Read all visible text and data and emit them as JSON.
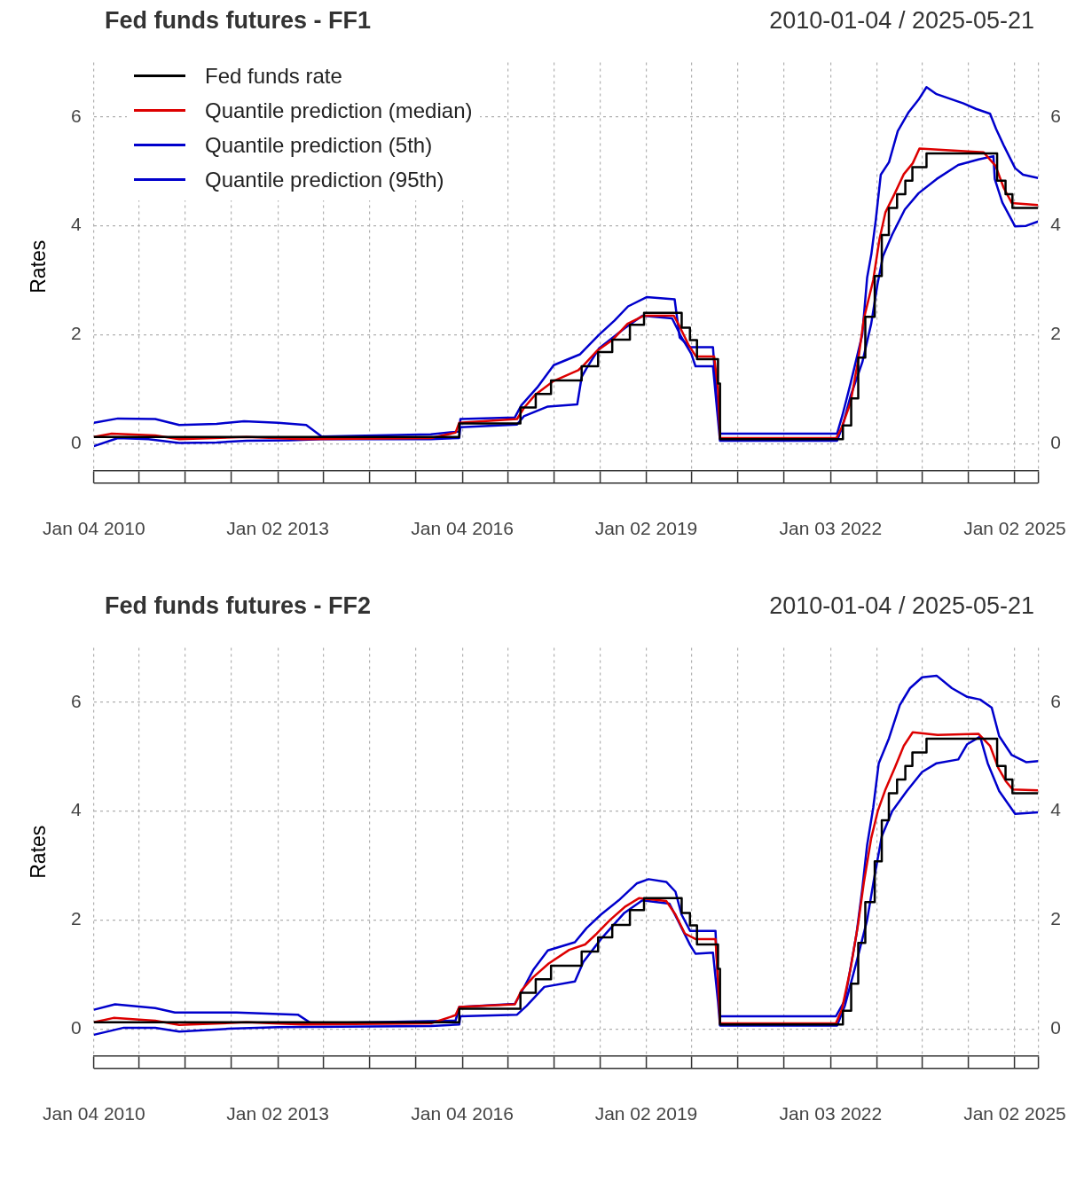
{
  "chart_data": [
    {
      "type": "line",
      "title": "Fed funds futures - FF1",
      "subtitle": "2010-01-04 / 2025-05-21",
      "ylabel": "Rates",
      "legend": "top left",
      "grid": true,
      "xlim": [
        "2010-01-04",
        "2025-05-21"
      ],
      "xticks": [
        {
          "value": "2010-01-04",
          "label": "Jan 04 2010"
        },
        {
          "value": "2010-10-01",
          "label": null
        },
        {
          "value": "2011-07-01",
          "label": null
        },
        {
          "value": "2012-04-02",
          "label": null
        },
        {
          "value": "2013-01-02",
          "label": "Jan 02 2013"
        },
        {
          "value": "2013-10-01",
          "label": null
        },
        {
          "value": "2014-07-01",
          "label": null
        },
        {
          "value": "2015-04-01",
          "label": null
        },
        {
          "value": "2016-01-04",
          "label": "Jan 04 2016"
        },
        {
          "value": "2016-10-03",
          "label": null
        },
        {
          "value": "2017-07-03",
          "label": null
        },
        {
          "value": "2018-04-02",
          "label": null
        },
        {
          "value": "2019-01-02",
          "label": "Jan 02 2019"
        },
        {
          "value": "2019-10-01",
          "label": null
        },
        {
          "value": "2020-07-01",
          "label": null
        },
        {
          "value": "2021-04-01",
          "label": null
        },
        {
          "value": "2022-01-03",
          "label": "Jan 03 2022"
        },
        {
          "value": "2022-10-03",
          "label": null
        },
        {
          "value": "2023-07-03",
          "label": null
        },
        {
          "value": "2024-04-01",
          "label": null
        },
        {
          "value": "2025-01-02",
          "label": "Jan 02 2025"
        },
        {
          "value": "2025-05-21",
          "label": null
        }
      ],
      "ylim": [
        -0.5,
        7
      ],
      "yticks": [
        0,
        2,
        4,
        6
      ],
      "y2lim": [
        -0.5,
        7
      ],
      "y2ticks": [
        0,
        2,
        4,
        6
      ],
      "series": [
        {
          "name": "Fed funds rate",
          "type": "step",
          "color": "#000000",
          "x": [
            "2010-01-04",
            "2015-12-17",
            "2016-12-15",
            "2017-03-16",
            "2017-06-15",
            "2017-12-14",
            "2018-03-22",
            "2018-06-14",
            "2018-09-27",
            "2018-12-20",
            "2019-08-01",
            "2019-09-19",
            "2019-10-31",
            "2020-03-04",
            "2020-03-16",
            "2022-03-17",
            "2022-05-05",
            "2022-06-16",
            "2022-07-28",
            "2022-09-22",
            "2022-11-03",
            "2022-12-15",
            "2023-02-02",
            "2023-03-23",
            "2023-05-04",
            "2023-07-27",
            "2024-09-19",
            "2024-11-08",
            "2024-12-19",
            "2025-05-21"
          ],
          "values": [
            0.12,
            0.37,
            0.66,
            0.91,
            1.16,
            1.42,
            1.68,
            1.91,
            2.18,
            2.4,
            2.13,
            1.9,
            1.55,
            1.1,
            0.08,
            0.33,
            0.83,
            1.58,
            2.33,
            3.08,
            3.83,
            4.33,
            4.58,
            4.83,
            5.08,
            5.33,
            4.83,
            4.58,
            4.33,
            4.33
          ]
        },
        {
          "name": "Quantile prediction (median)",
          "color": "#dd0000",
          "x": [
            "2010-01-04",
            "2010-04-20",
            "2011-01-04",
            "2011-05-27",
            "2012-07-01",
            "2013-05-27",
            "2015-07-01",
            "2015-11-25",
            "2015-12-17",
            "2016-11-25",
            "2017-01-04",
            "2017-03-14",
            "2017-07-01",
            "2017-11-25",
            "2017-12-20",
            "2018-03-14",
            "2018-06-14",
            "2018-09-13",
            "2018-12-20",
            "2019-06-15",
            "2019-07-20",
            "2019-09-13",
            "2019-10-25",
            "2020-02-10",
            "2020-03-04",
            "2020-03-16",
            "2022-02-06",
            "2022-03-10",
            "2022-05-01",
            "2022-06-14",
            "2022-07-20",
            "2022-09-13",
            "2022-10-20",
            "2022-11-25",
            "2023-01-20",
            "2023-03-14",
            "2023-05-06",
            "2023-06-15",
            "2024-07-01",
            "2024-09-10",
            "2024-10-28",
            "2024-12-15",
            "2025-05-21"
          ],
          "values": [
            0.12,
            0.18,
            0.15,
            0.08,
            0.12,
            0.08,
            0.1,
            0.2,
            0.38,
            0.45,
            0.65,
            0.9,
            1.15,
            1.35,
            1.42,
            1.7,
            1.9,
            2.2,
            2.35,
            2.35,
            2.15,
            1.8,
            1.6,
            1.6,
            1.0,
            0.1,
            0.1,
            0.3,
            0.75,
            1.5,
            2.3,
            3.0,
            3.75,
            4.25,
            4.6,
            4.95,
            5.15,
            5.42,
            5.35,
            5.1,
            4.7,
            4.42,
            4.38
          ]
        },
        {
          "name": "Quantile prediction (5th)",
          "color": "#0000cc",
          "x": [
            "2010-01-04",
            "2010-05-27",
            "2010-11-25",
            "2011-05-27",
            "2012-01-04",
            "2012-07-01",
            "2013-03-14",
            "2013-09-13",
            "2015-07-01",
            "2015-12-17",
            "2015-12-24",
            "2016-11-25",
            "2017-01-04",
            "2017-05-27",
            "2017-11-18",
            "2017-12-14",
            "2018-01-12",
            "2018-03-28",
            "2018-08-28",
            "2018-12-10",
            "2019-06-05",
            "2019-07-31",
            "2019-09-27",
            "2019-10-22",
            "2020-02-03",
            "2020-02-28",
            "2020-03-16",
            "2022-02-10",
            "2022-03-14",
            "2022-05-01",
            "2022-07-10",
            "2022-09-01",
            "2022-10-08",
            "2022-11-10",
            "2023-01-04",
            "2023-03-20",
            "2023-06-10",
            "2023-09-25",
            "2024-02-01",
            "2024-06-01",
            "2024-08-28",
            "2024-09-05",
            "2024-10-20",
            "2025-01-04",
            "2025-03-10",
            "2025-05-21"
          ],
          "values": [
            -0.05,
            0.1,
            0.08,
            0.01,
            0.02,
            0.05,
            0.06,
            0.08,
            0.08,
            0.1,
            0.3,
            0.35,
            0.5,
            0.68,
            0.72,
            1.22,
            1.38,
            1.75,
            2.12,
            2.35,
            2.3,
            1.95,
            1.65,
            1.42,
            1.42,
            0.6,
            0.05,
            0.05,
            0.31,
            0.87,
            1.49,
            2.2,
            2.92,
            3.44,
            3.84,
            4.3,
            4.6,
            4.86,
            5.12,
            5.22,
            5.28,
            4.86,
            4.43,
            3.99,
            4.0,
            4.08
          ]
        },
        {
          "name": "Quantile prediction (95th)",
          "color": "#0000cc",
          "x": [
            "2010-01-04",
            "2010-05-27",
            "2011-01-04",
            "2011-05-27",
            "2012-01-04",
            "2012-06-15",
            "2013-01-04",
            "2013-06-20",
            "2013-09-20",
            "2015-07-01",
            "2015-12-17",
            "2015-12-24",
            "2016-11-12",
            "2016-12-20",
            "2017-03-25",
            "2017-07-01",
            "2017-12-05",
            "2018-03-28",
            "2018-06-28",
            "2018-09-16",
            "2019-01-04",
            "2019-06-20",
            "2019-07-20",
            "2019-09-20",
            "2020-02-03",
            "2020-02-28",
            "2020-03-16",
            "2022-02-10",
            "2022-03-14",
            "2022-05-01",
            "2022-07-10",
            "2022-08-08",
            "2022-09-02",
            "2022-09-28",
            "2022-10-28",
            "2022-12-16",
            "2023-02-06",
            "2023-04-12",
            "2023-06-10",
            "2023-07-27",
            "2023-09-25",
            "2024-03-03",
            "2024-05-16",
            "2024-08-08",
            "2024-09-13",
            "2024-10-28",
            "2025-01-04",
            "2025-02-20",
            "2025-05-21"
          ],
          "values": [
            0.38,
            0.46,
            0.45,
            0.34,
            0.36,
            0.41,
            0.38,
            0.34,
            0.13,
            0.17,
            0.22,
            0.45,
            0.48,
            0.7,
            1.03,
            1.44,
            1.64,
            2.0,
            2.26,
            2.52,
            2.69,
            2.65,
            1.95,
            1.77,
            1.77,
            0.7,
            0.18,
            0.18,
            0.52,
            1.1,
            2.0,
            3.05,
            3.48,
            4.1,
            4.94,
            5.17,
            5.74,
            6.09,
            6.32,
            6.55,
            6.42,
            6.25,
            6.15,
            6.06,
            5.78,
            5.48,
            5.06,
            4.94,
            4.88
          ]
        }
      ]
    },
    {
      "type": "line",
      "title": "Fed funds futures - FF2",
      "subtitle": "2010-01-04 / 2025-05-21",
      "ylabel": "Rates",
      "grid": true,
      "xlim": [
        "2010-01-04",
        "2025-05-21"
      ],
      "xticks": [
        {
          "value": "2010-01-04",
          "label": "Jan 04 2010"
        },
        {
          "value": "2010-10-01",
          "label": null
        },
        {
          "value": "2011-07-01",
          "label": null
        },
        {
          "value": "2012-04-02",
          "label": null
        },
        {
          "value": "2013-01-02",
          "label": "Jan 02 2013"
        },
        {
          "value": "2013-10-01",
          "label": null
        },
        {
          "value": "2014-07-01",
          "label": null
        },
        {
          "value": "2015-04-01",
          "label": null
        },
        {
          "value": "2016-01-04",
          "label": "Jan 04 2016"
        },
        {
          "value": "2016-10-03",
          "label": null
        },
        {
          "value": "2017-07-03",
          "label": null
        },
        {
          "value": "2018-04-02",
          "label": null
        },
        {
          "value": "2019-01-02",
          "label": "Jan 02 2019"
        },
        {
          "value": "2019-10-01",
          "label": null
        },
        {
          "value": "2020-07-01",
          "label": null
        },
        {
          "value": "2021-04-01",
          "label": null
        },
        {
          "value": "2022-01-03",
          "label": "Jan 03 2022"
        },
        {
          "value": "2022-10-03",
          "label": null
        },
        {
          "value": "2023-07-03",
          "label": null
        },
        {
          "value": "2024-04-01",
          "label": null
        },
        {
          "value": "2025-01-02",
          "label": "Jan 02 2025"
        },
        {
          "value": "2025-05-21",
          "label": null
        }
      ],
      "ylim": [
        -0.5,
        7
      ],
      "yticks": [
        0,
        2,
        4,
        6
      ],
      "y2lim": [
        -0.5,
        7
      ],
      "y2ticks": [
        0,
        2,
        4,
        6
      ],
      "series": [
        {
          "type": "step",
          "color": "#000000",
          "x": [
            "2010-01-04",
            "2015-12-17",
            "2016-12-15",
            "2017-03-16",
            "2017-06-15",
            "2017-12-14",
            "2018-03-22",
            "2018-06-14",
            "2018-09-27",
            "2018-12-20",
            "2019-08-01",
            "2019-09-19",
            "2019-10-31",
            "2020-03-04",
            "2020-03-16",
            "2022-03-17",
            "2022-05-05",
            "2022-06-16",
            "2022-07-28",
            "2022-09-22",
            "2022-11-03",
            "2022-12-15",
            "2023-02-02",
            "2023-03-23",
            "2023-05-04",
            "2023-07-27",
            "2024-09-19",
            "2024-11-08",
            "2024-12-19",
            "2025-05-21"
          ],
          "values": [
            0.12,
            0.37,
            0.66,
            0.91,
            1.16,
            1.42,
            1.68,
            1.91,
            2.18,
            2.4,
            2.13,
            1.9,
            1.55,
            1.1,
            0.08,
            0.33,
            0.83,
            1.58,
            2.33,
            3.08,
            3.83,
            4.33,
            4.58,
            4.83,
            5.08,
            5.33,
            4.83,
            4.58,
            4.33,
            4.33
          ]
        },
        {
          "color": "#dd0000",
          "x": [
            "2010-01-04",
            "2010-05-01",
            "2011-01-04",
            "2011-05-27",
            "2012-07-01",
            "2013-05-27",
            "2015-07-01",
            "2015-11-25",
            "2015-12-17",
            "2016-11-12",
            "2016-12-20",
            "2017-03-01",
            "2017-06-01",
            "2017-10-01",
            "2018-01-04",
            "2018-03-14",
            "2018-06-01",
            "2018-09-01",
            "2018-11-20",
            "2019-05-01",
            "2019-06-25",
            "2019-08-20",
            "2019-10-22",
            "2020-02-18",
            "2020-03-04",
            "2020-03-16",
            "2022-02-03",
            "2022-03-10",
            "2022-05-01",
            "2022-06-14",
            "2022-07-20",
            "2022-09-01",
            "2022-10-10",
            "2022-11-25",
            "2023-01-20",
            "2023-03-14",
            "2023-05-06",
            "2023-10-01",
            "2024-06-01",
            "2024-08-08",
            "2024-09-25",
            "2024-11-10",
            "2024-12-20",
            "2025-05-21"
          ],
          "values": [
            0.12,
            0.2,
            0.15,
            0.07,
            0.12,
            0.08,
            0.1,
            0.25,
            0.4,
            0.45,
            0.7,
            0.95,
            1.2,
            1.45,
            1.55,
            1.75,
            2.0,
            2.25,
            2.4,
            2.35,
            2.1,
            1.75,
            1.65,
            1.65,
            0.9,
            0.1,
            0.1,
            0.35,
            1.1,
            1.9,
            2.7,
            3.5,
            4.0,
            4.4,
            4.8,
            5.2,
            5.45,
            5.4,
            5.42,
            5.2,
            4.8,
            4.55,
            4.4,
            4.38
          ]
        },
        {
          "color": "#0000cc",
          "x": [
            "2010-01-04",
            "2010-07-01",
            "2011-01-04",
            "2011-05-27",
            "2012-03-14",
            "2013-01-04",
            "2015-07-01",
            "2015-12-17",
            "2015-12-24",
            "2016-11-25",
            "2017-01-20",
            "2017-05-06",
            "2017-11-04",
            "2017-12-24",
            "2018-04-08",
            "2018-08-25",
            "2018-12-10",
            "2019-05-20",
            "2019-07-08",
            "2019-09-20",
            "2019-10-22",
            "2020-02-03",
            "2020-03-04",
            "2020-03-16",
            "2022-02-10",
            "2022-03-28",
            "2022-06-06",
            "2022-08-08",
            "2022-09-16",
            "2022-11-03",
            "2023-01-04",
            "2023-04-01",
            "2023-07-01",
            "2023-09-25",
            "2024-02-01",
            "2024-03-25",
            "2024-06-10",
            "2024-07-25",
            "2024-10-01",
            "2025-01-04",
            "2025-05-21"
          ],
          "values": [
            -0.11,
            0.02,
            0.02,
            -0.05,
            0.0,
            0.03,
            0.05,
            0.08,
            0.23,
            0.26,
            0.42,
            0.77,
            0.87,
            1.23,
            1.65,
            2.13,
            2.36,
            2.3,
            2.0,
            1.54,
            1.38,
            1.4,
            0.5,
            0.06,
            0.06,
            0.42,
            1.23,
            2.0,
            2.72,
            3.54,
            4.0,
            4.37,
            4.72,
            4.88,
            4.95,
            5.23,
            5.37,
            4.88,
            4.37,
            3.95,
            3.98
          ]
        },
        {
          "color": "#0000cc",
          "x": [
            "2010-01-04",
            "2010-05-10",
            "2011-01-04",
            "2011-05-01",
            "2012-05-01",
            "2013-05-01",
            "2013-07-20",
            "2015-11-25",
            "2015-12-17",
            "2016-11-12",
            "2016-12-20",
            "2017-03-01",
            "2017-05-27",
            "2017-11-04",
            "2018-01-12",
            "2018-04-08",
            "2018-07-22",
            "2018-11-06",
            "2019-01-16",
            "2019-05-01",
            "2019-06-25",
            "2019-07-31",
            "2019-09-20",
            "2020-02-18",
            "2020-03-04",
            "2020-03-16",
            "2022-02-03",
            "2022-03-28",
            "2022-06-06",
            "2022-07-10",
            "2022-08-08",
            "2022-09-13",
            "2022-10-16",
            "2022-12-16",
            "2023-02-18",
            "2023-04-20",
            "2023-07-01",
            "2023-09-25",
            "2023-12-25",
            "2024-03-25",
            "2024-06-10",
            "2024-08-18",
            "2024-10-01",
            "2024-12-15",
            "2025-03-10",
            "2025-05-21"
          ],
          "values": [
            0.35,
            0.45,
            0.38,
            0.3,
            0.3,
            0.26,
            0.1,
            0.15,
            0.4,
            0.46,
            0.67,
            1.08,
            1.44,
            1.59,
            1.85,
            2.1,
            2.36,
            2.67,
            2.75,
            2.7,
            2.52,
            2.1,
            1.8,
            1.8,
            0.8,
            0.23,
            0.23,
            0.52,
            1.75,
            2.57,
            3.38,
            4.06,
            4.88,
            5.34,
            5.95,
            6.26,
            6.46,
            6.49,
            6.26,
            6.1,
            6.05,
            5.9,
            5.38,
            5.03,
            4.9,
            4.92
          ]
        }
      ]
    }
  ]
}
